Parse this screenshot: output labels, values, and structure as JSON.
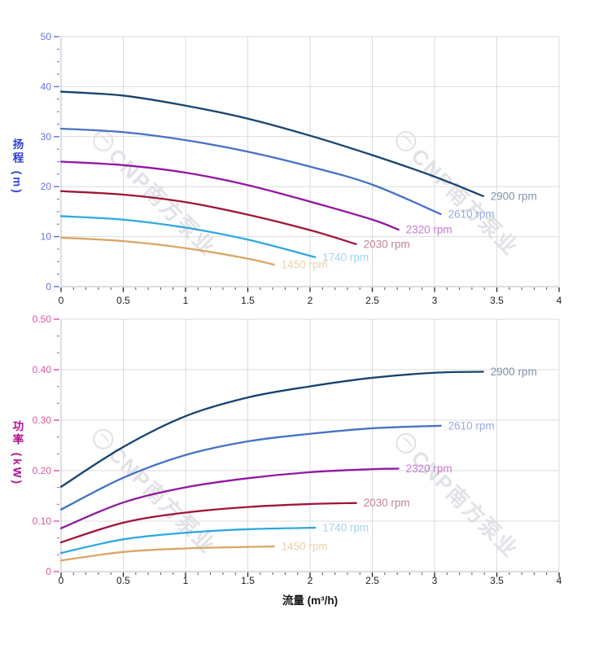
{
  "watermark": {
    "text": "CNP南方泵业"
  },
  "chart_data": [
    {
      "id": "head",
      "type": "line",
      "title": "",
      "xlabel": "流量 (m³/h)",
      "ylabel": "扬程 (m)",
      "ylabel_color": "#2e3fd4",
      "tick_color": "#6672dd",
      "xlim": [
        0,
        4
      ],
      "ylim": [
        0,
        50
      ],
      "x_major_step": 0.5,
      "x_minor_step": 0.1,
      "y_major_step": 10,
      "y_minor_divs": 4,
      "grid": true,
      "legend_position": "end-of-line-labels",
      "x_tick_labels": [
        "0",
        "0.5",
        "1",
        "1.5",
        "2",
        "2.5",
        "3",
        "3.5",
        "4"
      ],
      "y_tick_labels": [
        "0",
        "10",
        "20",
        "30",
        "40",
        "50"
      ],
      "series": [
        {
          "name": "2900 rpm",
          "color": "#15456e",
          "label_color": "#8093ac",
          "points": [
            [
              0,
              39
            ],
            [
              0.5,
              38.2
            ],
            [
              1,
              36.2
            ],
            [
              1.5,
              33.6
            ],
            [
              2,
              30.2
            ],
            [
              2.5,
              26.3
            ],
            [
              3,
              22.0
            ],
            [
              3.39,
              18.1
            ]
          ]
        },
        {
          "name": "2610 rpm",
          "color": "#4672c4",
          "label_color": "#98abdf",
          "points": [
            [
              0,
              31.6
            ],
            [
              0.5,
              30.9
            ],
            [
              1,
              29.3
            ],
            [
              1.5,
              27.0
            ],
            [
              2,
              24.0
            ],
            [
              2.5,
              20.4
            ],
            [
              3.05,
              14.5
            ]
          ]
        },
        {
          "name": "2320 rpm",
          "color": "#93189e",
          "label_color": "#c67bd1",
          "points": [
            [
              0,
              25.0
            ],
            [
              0.5,
              24.3
            ],
            [
              1,
              22.8
            ],
            [
              1.5,
              20.3
            ],
            [
              2,
              17.0
            ],
            [
              2.5,
              13.4
            ],
            [
              2.71,
              11.4
            ]
          ]
        },
        {
          "name": "2030 rpm",
          "color": "#9e1638",
          "label_color": "#c0849b",
          "points": [
            [
              0,
              19.1
            ],
            [
              0.5,
              18.4
            ],
            [
              1,
              16.9
            ],
            [
              1.5,
              14.4
            ],
            [
              2,
              11.3
            ],
            [
              2.37,
              8.5
            ]
          ]
        },
        {
          "name": "1740 rpm",
          "color": "#2ea8e0",
          "label_color": "#a3d4ef",
          "points": [
            [
              0,
              14.1
            ],
            [
              0.5,
              13.4
            ],
            [
              1,
              11.8
            ],
            [
              1.5,
              9.4
            ],
            [
              2.04,
              5.9
            ]
          ]
        },
        {
          "name": "1450 rpm",
          "color": "#d9a665",
          "label_color": "#e9d3aa",
          "points": [
            [
              0,
              9.8
            ],
            [
              0.5,
              9.1
            ],
            [
              1,
              7.7
            ],
            [
              1.5,
              5.6
            ],
            [
              1.71,
              4.4
            ]
          ]
        }
      ]
    },
    {
      "id": "power",
      "type": "line",
      "title": "",
      "xlabel": "流量 (m³/h)",
      "ylabel": "功率 (kW)",
      "ylabel_color": "#b01190",
      "tick_color": "#d8569f",
      "xlim": [
        0,
        4
      ],
      "ylim": [
        0,
        0.5
      ],
      "x_major_step": 0.5,
      "x_minor_step": 0.1,
      "y_major_step": 0.1,
      "y_minor_divs": 3,
      "grid": true,
      "legend_position": "end-of-line-labels",
      "x_tick_labels": [
        "0",
        "0.5",
        "1",
        "1.5",
        "2",
        "2.5",
        "3",
        "3.5",
        "4"
      ],
      "y_tick_labels": [
        "0",
        "0.10",
        "0.20",
        "0.30",
        "0.40",
        "0.50"
      ],
      "series": [
        {
          "name": "2900 rpm",
          "color": "#15456e",
          "label_color": "#8093ac",
          "points": [
            [
              0,
              0.168
            ],
            [
              0.5,
              0.247
            ],
            [
              1,
              0.308
            ],
            [
              1.5,
              0.345
            ],
            [
              2,
              0.367
            ],
            [
              2.5,
              0.384
            ],
            [
              3,
              0.394
            ],
            [
              3.39,
              0.396
            ]
          ]
        },
        {
          "name": "2610 rpm",
          "color": "#4672c4",
          "label_color": "#98abdf",
          "points": [
            [
              0,
              0.123
            ],
            [
              0.5,
              0.186
            ],
            [
              1,
              0.231
            ],
            [
              1.5,
              0.258
            ],
            [
              2,
              0.273
            ],
            [
              2.5,
              0.284
            ],
            [
              3.05,
              0.289
            ]
          ]
        },
        {
          "name": "2320 rpm",
          "color": "#93189e",
          "label_color": "#c67bd1",
          "points": [
            [
              0,
              0.086
            ],
            [
              0.5,
              0.137
            ],
            [
              1,
              0.167
            ],
            [
              1.5,
              0.185
            ],
            [
              2,
              0.197
            ],
            [
              2.5,
              0.203
            ],
            [
              2.71,
              0.204
            ]
          ]
        },
        {
          "name": "2030 rpm",
          "color": "#9e1638",
          "label_color": "#c0849b",
          "points": [
            [
              0,
              0.058
            ],
            [
              0.5,
              0.097
            ],
            [
              1,
              0.117
            ],
            [
              1.5,
              0.128
            ],
            [
              2,
              0.134
            ],
            [
              2.37,
              0.136
            ]
          ]
        },
        {
          "name": "1740 rpm",
          "color": "#2ea8e0",
          "label_color": "#a3d4ef",
          "points": [
            [
              0,
              0.037
            ],
            [
              0.5,
              0.064
            ],
            [
              1,
              0.077
            ],
            [
              1.5,
              0.084
            ],
            [
              2.04,
              0.087
            ]
          ]
        },
        {
          "name": "1450 rpm",
          "color": "#d9a665",
          "label_color": "#e9d3aa",
          "points": [
            [
              0,
              0.022
            ],
            [
              0.5,
              0.039
            ],
            [
              1,
              0.046
            ],
            [
              1.5,
              0.049
            ],
            [
              1.71,
              0.05
            ]
          ]
        }
      ]
    }
  ]
}
